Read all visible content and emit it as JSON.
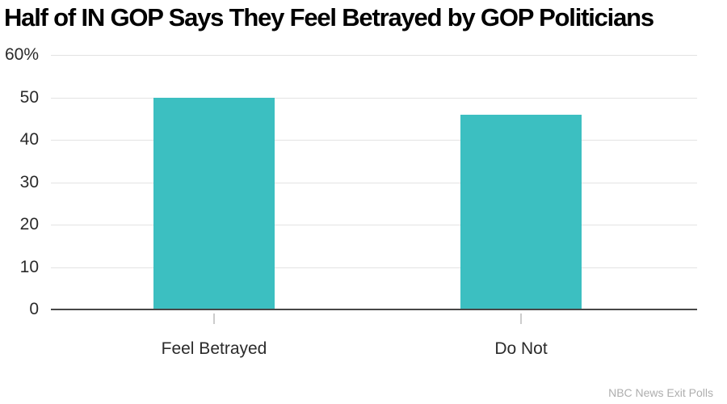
{
  "title": "Half of IN GOP Says They Feel Betrayed by GOP Politicians",
  "source": "NBC News Exit Polls",
  "colors": {
    "bar": "#3CBFC1",
    "gridline": "#e3e3e3",
    "axis_line": "#474747",
    "x_tick": "#cccccc",
    "title_text": "#000000",
    "tick_text": "#2b2b2b",
    "source_text": "#aeaeae",
    "background": "#ffffff"
  },
  "chart_data": {
    "type": "bar",
    "title": "Half of IN GOP Says They Feel Betrayed by GOP Politicians",
    "categories": [
      "Feel Betrayed",
      "Do Not"
    ],
    "values": [
      50,
      46
    ],
    "xlabel": "",
    "ylabel": "",
    "ylim": [
      0,
      60
    ],
    "yticks": [
      0,
      10,
      20,
      30,
      40,
      50,
      60
    ],
    "ytick_labels": [
      "0",
      "10",
      "20",
      "30",
      "40",
      "50",
      "60%"
    ],
    "grid": true,
    "legend": false,
    "source": "NBC News Exit Polls"
  }
}
